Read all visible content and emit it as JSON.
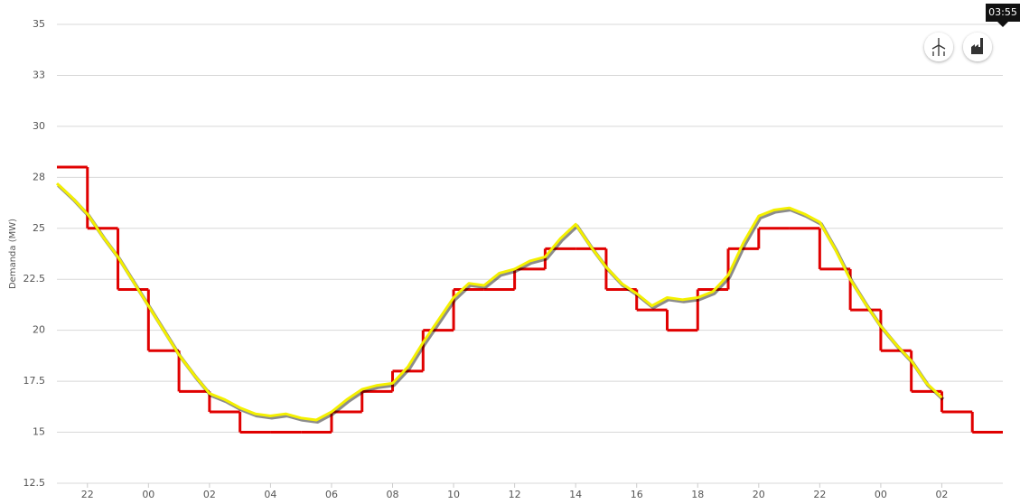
{
  "chart_data": {
    "type": "line",
    "y_label": "Demanda (MW)",
    "tooltip": "03:55",
    "xlim": [
      0,
      31
    ],
    "ylim": [
      12.5,
      35
    ],
    "grid": true,
    "yticks": [
      12.5,
      15,
      17.5,
      20,
      22.5,
      25,
      {
        "value": 27.5,
        "label": "28"
      },
      30,
      {
        "value": 32.5,
        "label": "33"
      },
      35
    ],
    "xticks": [
      {
        "value": 1,
        "label": "22"
      },
      {
        "value": 3,
        "label": "00"
      },
      {
        "value": 5,
        "label": "02"
      },
      {
        "value": 7,
        "label": "04"
      },
      {
        "value": 9,
        "label": "06"
      },
      {
        "value": 11,
        "label": "08"
      },
      {
        "value": 13,
        "label": "10"
      },
      {
        "value": 15,
        "label": "12"
      },
      {
        "value": 17,
        "label": "14"
      },
      {
        "value": 19,
        "label": "16"
      },
      {
        "value": 21,
        "label": "18"
      },
      {
        "value": 23,
        "label": "20"
      },
      {
        "value": 25,
        "label": "22"
      },
      {
        "value": 27,
        "label": "00"
      },
      {
        "value": 29,
        "label": "02"
      }
    ],
    "series": [
      {
        "color": "#e00000",
        "step": true,
        "x": [
          0,
          1,
          2,
          3,
          4,
          5,
          6,
          7,
          8,
          9,
          10,
          11,
          12,
          13,
          14,
          15,
          16,
          17,
          18,
          19,
          20,
          21,
          22,
          23,
          24,
          25,
          26,
          27,
          28,
          29,
          30
        ],
        "values": [
          28,
          25,
          22,
          19,
          17,
          16,
          15,
          15,
          15,
          16,
          17,
          18,
          20,
          22,
          22,
          23,
          24,
          24,
          22,
          21,
          20,
          22,
          24,
          25,
          25,
          23,
          21,
          19,
          17,
          16,
          15
        ]
      },
      {
        "color": "#f4f000",
        "step": false,
        "x": [
          0,
          0.5,
          1,
          1.5,
          2,
          2.5,
          3,
          3.5,
          4,
          4.5,
          5,
          5.5,
          6,
          6.5,
          7,
          7.5,
          8,
          8.5,
          9,
          9.5,
          10,
          10.5,
          11,
          11.5,
          12,
          12.5,
          13,
          13.5,
          14,
          14.5,
          15,
          15.5,
          16,
          16.5,
          17,
          17.5,
          18,
          18.5,
          19,
          19.5,
          20,
          20.5,
          21,
          21.5,
          22,
          22.5,
          23,
          23.5,
          24,
          24.5,
          25,
          25.5,
          26,
          26.5,
          27,
          27.5,
          28,
          28.5,
          29
        ],
        "values": [
          27.2,
          26.5,
          25.7,
          24.6,
          23.6,
          22.4,
          21.2,
          20.0,
          18.8,
          17.8,
          16.9,
          16.6,
          16.2,
          15.9,
          15.8,
          15.9,
          15.7,
          15.6,
          16.0,
          16.6,
          17.1,
          17.3,
          17.4,
          18.2,
          19.4,
          20.5,
          21.6,
          22.3,
          22.2,
          22.8,
          23.0,
          23.4,
          23.6,
          24.5,
          25.2,
          24.1,
          23.1,
          22.3,
          21.8,
          21.2,
          21.6,
          21.5,
          21.6,
          21.9,
          22.7,
          24.3,
          25.6,
          25.9,
          26.0,
          25.7,
          25.3,
          24.0,
          22.5,
          21.3,
          20.2,
          19.3,
          18.5,
          17.4,
          16.7
        ]
      }
    ]
  }
}
